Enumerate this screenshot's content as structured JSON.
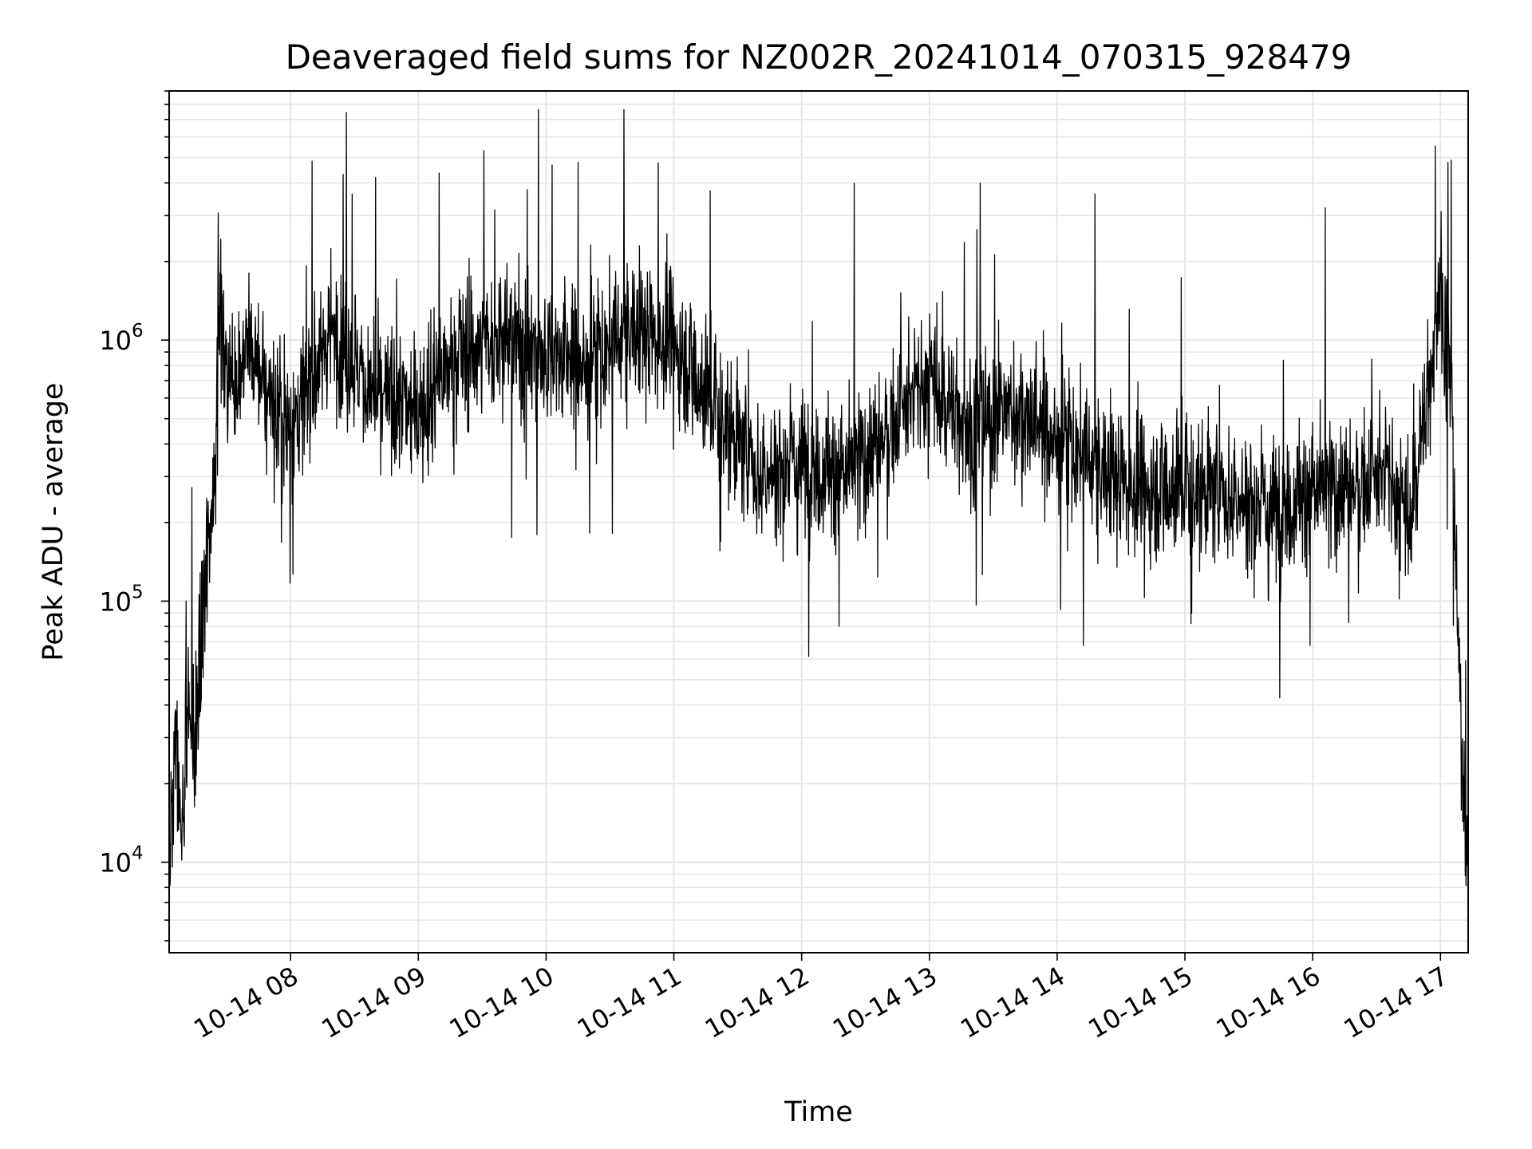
{
  "chart_data": {
    "type": "line",
    "title": "Deaveraged field sums for NZ002R_20241014_070315_928479",
    "xlabel": "Time",
    "ylabel": "Peak ADU - average",
    "yscale": "log",
    "xlim": [
      "2024-10-14 07:03",
      "2024-10-14 17:13"
    ],
    "ylim": [
      4500,
      9000000
    ],
    "x_ticks": [
      "10-14 08",
      "10-14 09",
      "10-14 10",
      "10-14 11",
      "10-14 12",
      "10-14 13",
      "10-14 14",
      "10-14 15",
      "10-14 16",
      "10-14 17"
    ],
    "x_tick_hours": [
      8,
      9,
      10,
      11,
      12,
      13,
      14,
      15,
      16,
      17
    ],
    "y_ticks": [
      {
        "value": 10000,
        "base": "10",
        "exp": "4"
      },
      {
        "value": 100000,
        "base": "10",
        "exp": "5"
      },
      {
        "value": 1000000,
        "base": "10",
        "exp": "6"
      }
    ],
    "grid": true,
    "line_color": "#000000",
    "grid_color": "#e6e6e6",
    "series": [
      {
        "values": [
          {
            "t": "07:03",
            "y": 9000
          },
          {
            "t": "07:06",
            "y": 30000
          },
          {
            "t": "07:09",
            "y": 12000
          },
          {
            "t": "07:12",
            "y": 40000
          },
          {
            "t": "07:15",
            "y": 25000
          },
          {
            "t": "07:18",
            "y": 60000
          },
          {
            "t": "07:21",
            "y": 150000
          },
          {
            "t": "07:24",
            "y": 300000
          },
          {
            "t": "07:27",
            "y": 1200000
          },
          {
            "t": "07:30",
            "y": 700000
          },
          {
            "t": "07:40",
            "y": 900000
          },
          {
            "t": "08:00",
            "y": 450000
          },
          {
            "t": "08:20",
            "y": 1100000
          },
          {
            "t": "08:40",
            "y": 600000
          },
          {
            "t": "09:00",
            "y": 550000
          },
          {
            "t": "09:20",
            "y": 900000
          },
          {
            "t": "09:40",
            "y": 1000000
          },
          {
            "t": "10:00",
            "y": 900000
          },
          {
            "t": "10:20",
            "y": 800000
          },
          {
            "t": "10:40",
            "y": 1100000
          },
          {
            "t": "11:00",
            "y": 1000000
          },
          {
            "t": "11:20",
            "y": 550000
          },
          {
            "t": "11:40",
            "y": 300000
          },
          {
            "t": "12:00",
            "y": 350000
          },
          {
            "t": "12:20",
            "y": 300000
          },
          {
            "t": "12:40",
            "y": 450000
          },
          {
            "t": "13:00",
            "y": 700000
          },
          {
            "t": "13:20",
            "y": 450000
          },
          {
            "t": "13:40",
            "y": 550000
          },
          {
            "t": "14:00",
            "y": 420000
          },
          {
            "t": "14:20",
            "y": 320000
          },
          {
            "t": "14:40",
            "y": 270000
          },
          {
            "t": "15:00",
            "y": 280000
          },
          {
            "t": "15:20",
            "y": 250000
          },
          {
            "t": "15:40",
            "y": 230000
          },
          {
            "t": "16:00",
            "y": 260000
          },
          {
            "t": "16:20",
            "y": 280000
          },
          {
            "t": "16:35",
            "y": 300000
          },
          {
            "t": "16:45",
            "y": 200000
          },
          {
            "t": "16:55",
            "y": 700000
          },
          {
            "t": "17:00",
            "y": 1800000
          },
          {
            "t": "17:05",
            "y": 600000
          },
          {
            "t": "17:08",
            "y": 80000
          },
          {
            "t": "17:10",
            "y": 30000
          },
          {
            "t": "17:13",
            "y": 8000
          }
        ]
      }
    ]
  }
}
